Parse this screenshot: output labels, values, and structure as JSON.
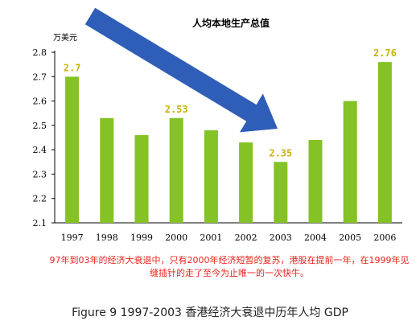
{
  "chart_data": {
    "type": "bar",
    "title": "人均本地生产总值",
    "ylabel": "万美元",
    "xlabel": "",
    "categories": [
      "1997",
      "1998",
      "1999",
      "2000",
      "2001",
      "2002",
      "2003",
      "2004",
      "2005",
      "2006"
    ],
    "values": [
      2.7,
      2.53,
      2.46,
      2.53,
      2.48,
      2.43,
      2.35,
      2.44,
      2.6,
      2.76
    ],
    "ylim": [
      2.1,
      2.8
    ],
    "yticks": [
      "2.1",
      "2.2",
      "2.3",
      "2.4",
      "2.5",
      "2.6",
      "2.7",
      "2.8"
    ],
    "data_labels": [
      {
        "category": "1997",
        "text": "2.7"
      },
      {
        "category": "2000",
        "text": "2.53"
      },
      {
        "category": "2003",
        "text": "2.35"
      },
      {
        "category": "2006",
        "text": "2.76"
      }
    ],
    "grid": false,
    "bar_color": "#84c225",
    "data_label_color": "#c9b20f",
    "annotation": "decline arrow from 1997 to 2003",
    "arrow_color": "#2f5eb8"
  },
  "note": "97年到03年的经济大衰退中，只有2000年经济短暂的复苏，港股在提前一年，在1999年见缝插针的走了至今为止唯一的一次快牛。",
  "caption": "Figure 9 1997-2003  香港经济大衰退中历年人均 GDP"
}
